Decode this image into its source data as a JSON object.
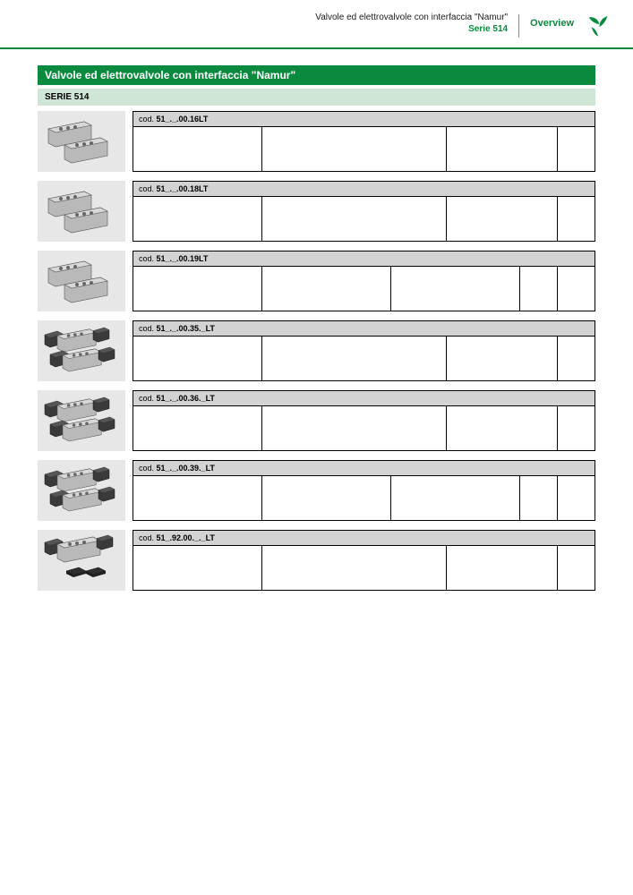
{
  "header": {
    "title": "Valvole ed elettrovalvole con interfaccia \"Namur\"",
    "subtitle": "Serie 514",
    "overview_label": "Overview"
  },
  "colors": {
    "brand_green": "#0a8a3f",
    "serie_bg": "#cfe6d7",
    "code_bg": "#d3d3d3",
    "thumb_bg": "#e7e7e7",
    "border": "#000000"
  },
  "title_bar": "Valvole ed elettrovalvole con interfaccia \"Namur\"",
  "serie_bar": "SERIE 514",
  "code_prefix": "cod. ",
  "rows": [
    {
      "code": "51_._.00.16LT",
      "thumb": "valve2",
      "cols": [
        0.28,
        0.4,
        0.24,
        0.08
      ]
    },
    {
      "code": "51_._.00.18LT",
      "thumb": "valve2",
      "cols": [
        0.28,
        0.4,
        0.24,
        0.08
      ]
    },
    {
      "code": "51_._.00.19LT",
      "thumb": "valve2",
      "cols": [
        0.28,
        0.28,
        0.28,
        0.08,
        0.08
      ]
    },
    {
      "code": "51_._.00.35._LT",
      "thumb": "valve2_solenoid",
      "cols": [
        0.28,
        0.4,
        0.24,
        0.08
      ]
    },
    {
      "code": "51_._.00.36._LT",
      "thumb": "valve2_solenoid",
      "cols": [
        0.28,
        0.4,
        0.24,
        0.08
      ]
    },
    {
      "code": "51_._.00.39._LT",
      "thumb": "valve2_solenoid",
      "cols": [
        0.28,
        0.28,
        0.28,
        0.08,
        0.08
      ]
    },
    {
      "code": "51_.92.00._._LT",
      "thumb": "valve_plates",
      "cols": [
        0.28,
        0.4,
        0.24,
        0.08
      ]
    }
  ]
}
